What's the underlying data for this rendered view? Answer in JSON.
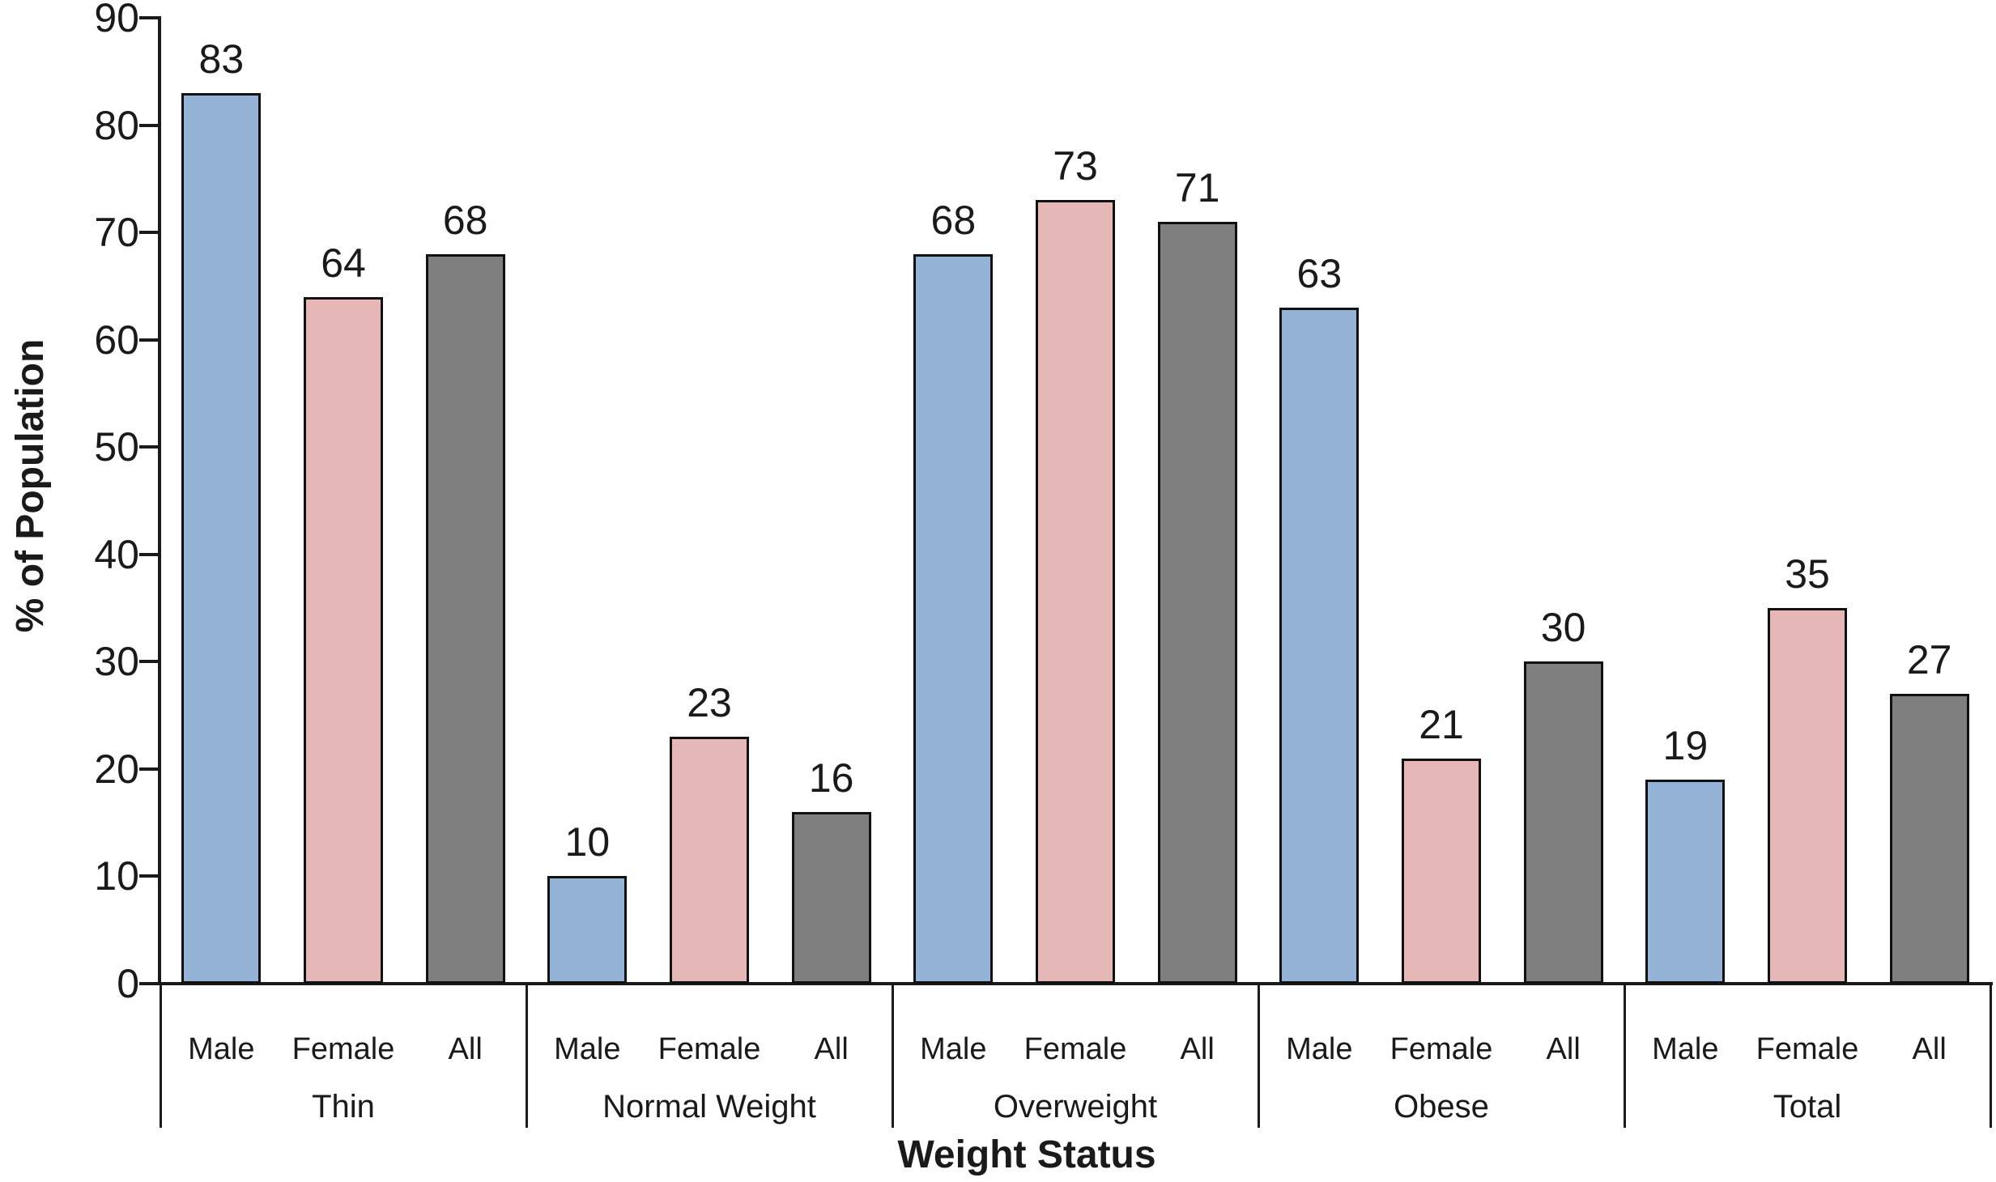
{
  "chart_data": {
    "type": "bar",
    "title": "",
    "xlabel": "Weight Status",
    "ylabel": "% of Population",
    "ylim": [
      0,
      90
    ],
    "yticks": [
      0,
      10,
      20,
      30,
      40,
      50,
      60,
      70,
      80,
      90
    ],
    "grid": false,
    "legend_position": "none",
    "data_labels_shown": true,
    "categories": [
      "Thin",
      "Normal Weight",
      "Overweight",
      "Obese",
      "Total"
    ],
    "subcategories": [
      "Male",
      "Female",
      "All"
    ],
    "series": [
      {
        "name": "Male",
        "color": "#95B3D7",
        "values": [
          83,
          10,
          68,
          63,
          19
        ]
      },
      {
        "name": "Female",
        "color": "#E5B8B7",
        "values": [
          64,
          23,
          73,
          21,
          35
        ]
      },
      {
        "name": "All",
        "color": "#7F7F7F",
        "values": [
          68,
          16,
          71,
          30,
          27
        ]
      }
    ],
    "bar_border_color": "#111111",
    "axis_color": "#1a1a1a",
    "background_color": "#ffffff"
  }
}
